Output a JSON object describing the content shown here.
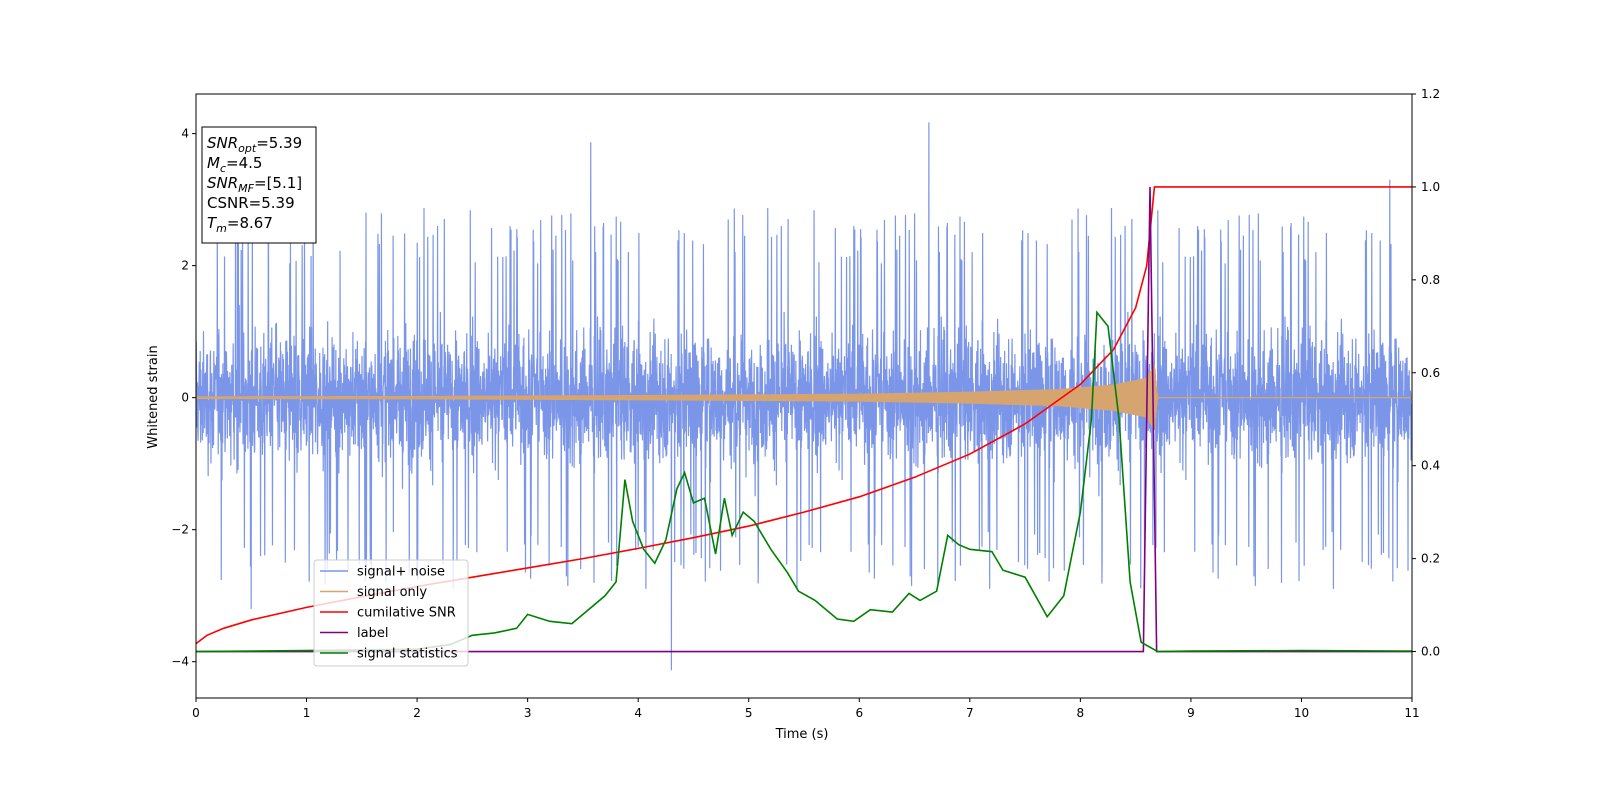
{
  "chart_data": {
    "type": "line",
    "xlabel": "Time (s)",
    "ylabel": "Whitened strain",
    "xlim": [
      0,
      11
    ],
    "ylim": [
      -4.55,
      4.6
    ],
    "y2lim": [
      -0.1,
      1.2
    ],
    "x_ticks": [
      "0",
      "1",
      "2",
      "3",
      "4",
      "5",
      "6",
      "7",
      "8",
      "9",
      "10",
      "11"
    ],
    "y_ticks": [
      "−4",
      "−2",
      "0",
      "2",
      "4"
    ],
    "y2_ticks": [
      "0.0",
      "0.2",
      "0.4",
      "0.6",
      "0.8",
      "1.0",
      "1.2"
    ],
    "legend_placement": "lower-left",
    "grid": false,
    "info_box": {
      "lines": [
        {
          "sym": "SNR",
          "sub": "opt",
          "val": "=5.39"
        },
        {
          "sym": "M",
          "sub": "c",
          "val": "=4.5"
        },
        {
          "sym": "SNR",
          "sub": "MF",
          "val": "=[5.1]"
        },
        {
          "sym": "CSNR",
          "sub": "",
          "val": "=5.39"
        },
        {
          "sym": "T",
          "sub": "m",
          "val": "=8.67"
        }
      ]
    },
    "series": [
      {
        "name": "signal+ noise",
        "axis": "left",
        "color": "#7b96e8",
        "kind": "noise",
        "band_core": 1.6,
        "band_spikes": 2.9,
        "notable_points": [
          [
            0.5,
            -3.2
          ],
          [
            3.57,
            3.87
          ],
          [
            4.3,
            -4.13
          ],
          [
            6.63,
            4.17
          ],
          [
            10.8,
            3.3
          ]
        ]
      },
      {
        "name": "signal only",
        "axis": "left",
        "color": "#d6a46e",
        "kind": "chirp",
        "merge_time": 8.67,
        "envelope": [
          [
            0,
            0.02
          ],
          [
            2,
            0.025
          ],
          [
            4,
            0.04
          ],
          [
            6,
            0.06
          ],
          [
            7,
            0.09
          ],
          [
            7.8,
            0.13
          ],
          [
            8.3,
            0.2
          ],
          [
            8.6,
            0.3
          ],
          [
            8.67,
            0.5
          ],
          [
            8.7,
            0.0
          ],
          [
            11,
            0.0
          ]
        ]
      },
      {
        "name": "cumilative SNR",
        "axis": "right",
        "color": "#ff0000",
        "points": [
          [
            0,
            0.017
          ],
          [
            0.1,
            0.035
          ],
          [
            0.25,
            0.05
          ],
          [
            0.5,
            0.068
          ],
          [
            1,
            0.095
          ],
          [
            1.5,
            0.118
          ],
          [
            2,
            0.14
          ],
          [
            2.5,
            0.16
          ],
          [
            3,
            0.18
          ],
          [
            3.5,
            0.2
          ],
          [
            4,
            0.222
          ],
          [
            4.5,
            0.245
          ],
          [
            5,
            0.27
          ],
          [
            5.5,
            0.3
          ],
          [
            6,
            0.333
          ],
          [
            6.5,
            0.375
          ],
          [
            7,
            0.425
          ],
          [
            7.5,
            0.49
          ],
          [
            8,
            0.575
          ],
          [
            8.3,
            0.65
          ],
          [
            8.5,
            0.74
          ],
          [
            8.6,
            0.83
          ],
          [
            8.67,
            1.0
          ],
          [
            11,
            1.0
          ]
        ]
      },
      {
        "name": "label",
        "axis": "right",
        "color": "#800080",
        "points": [
          [
            0,
            0.0
          ],
          [
            8.57,
            0.0
          ],
          [
            8.63,
            1.0
          ],
          [
            8.69,
            0.0
          ],
          [
            11,
            0.0
          ]
        ]
      },
      {
        "name": "signal statistics",
        "axis": "right",
        "color": "#008000",
        "points": [
          [
            0,
            0.0
          ],
          [
            1,
            0.002
          ],
          [
            2,
            0.005
          ],
          [
            2.3,
            0.015
          ],
          [
            2.5,
            0.035
          ],
          [
            2.7,
            0.04
          ],
          [
            2.9,
            0.05
          ],
          [
            3.0,
            0.08
          ],
          [
            3.2,
            0.065
          ],
          [
            3.4,
            0.06
          ],
          [
            3.5,
            0.08
          ],
          [
            3.7,
            0.12
          ],
          [
            3.8,
            0.15
          ],
          [
            3.88,
            0.37
          ],
          [
            3.95,
            0.28
          ],
          [
            4.05,
            0.22
          ],
          [
            4.15,
            0.19
          ],
          [
            4.25,
            0.24
          ],
          [
            4.35,
            0.35
          ],
          [
            4.42,
            0.385
          ],
          [
            4.5,
            0.32
          ],
          [
            4.6,
            0.33
          ],
          [
            4.7,
            0.21
          ],
          [
            4.78,
            0.33
          ],
          [
            4.85,
            0.25
          ],
          [
            4.95,
            0.3
          ],
          [
            5.05,
            0.28
          ],
          [
            5.2,
            0.22
          ],
          [
            5.35,
            0.17
          ],
          [
            5.45,
            0.13
          ],
          [
            5.6,
            0.11
          ],
          [
            5.8,
            0.07
          ],
          [
            5.95,
            0.065
          ],
          [
            6.1,
            0.09
          ],
          [
            6.3,
            0.085
          ],
          [
            6.45,
            0.125
          ],
          [
            6.55,
            0.11
          ],
          [
            6.7,
            0.13
          ],
          [
            6.8,
            0.25
          ],
          [
            6.9,
            0.23
          ],
          [
            7.0,
            0.22
          ],
          [
            7.2,
            0.215
          ],
          [
            7.3,
            0.175
          ],
          [
            7.5,
            0.16
          ],
          [
            7.7,
            0.075
          ],
          [
            7.85,
            0.12
          ],
          [
            8.0,
            0.3
          ],
          [
            8.1,
            0.5
          ],
          [
            8.15,
            0.73
          ],
          [
            8.25,
            0.7
          ],
          [
            8.35,
            0.5
          ],
          [
            8.45,
            0.15
          ],
          [
            8.55,
            0.02
          ],
          [
            8.7,
            0.0
          ],
          [
            9,
            0.001
          ],
          [
            10,
            0.002
          ],
          [
            11,
            0.001
          ]
        ]
      }
    ]
  }
}
